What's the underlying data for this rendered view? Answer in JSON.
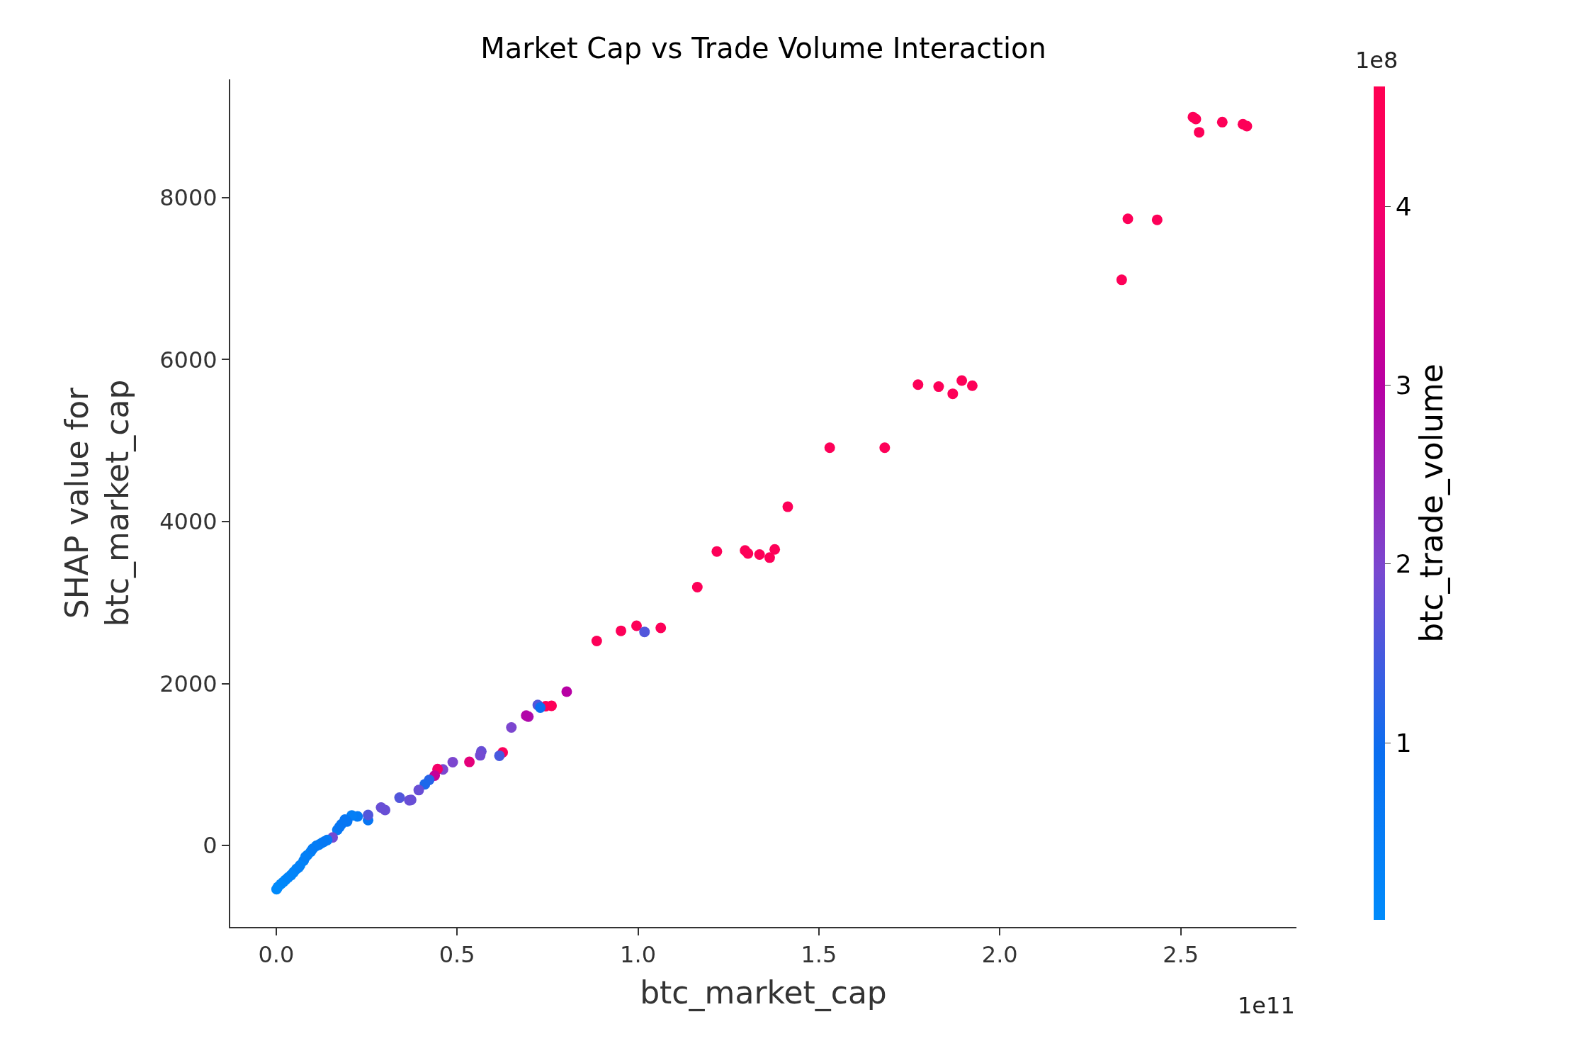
{
  "chart_data": {
    "type": "scatter",
    "title": "Market Cap vs Trade Volume Interaction",
    "xlabel": "btc_market_cap",
    "ylabel": "SHAP value for\nbtc_market_cap",
    "clabel": "btc_trade_volume",
    "annotations": [
      "1e11",
      "1e8"
    ],
    "x": [
      2.534,
      2.542,
      2.551,
      2.615,
      2.672,
      2.683,
      2.354,
      2.435,
      2.337,
      1.774,
      1.831,
      1.87,
      1.895,
      1.924,
      1.53,
      1.682,
      1.414,
      1.218,
      1.296,
      1.304,
      1.336,
      1.364,
      1.378,
      1.164,
      0.886,
      0.953,
      0.996,
      1.018,
      1.063,
      0.803,
      0.761,
      0.745,
      0.723,
      0.73,
      0.697,
      0.691,
      0.65,
      0.626,
      0.617,
      0.567,
      0.564,
      0.534,
      0.488,
      0.461,
      0.446,
      0.438,
      0.423,
      0.411,
      0.394,
      0.373,
      0.368,
      0.341,
      0.301,
      0.29,
      0.254,
      0.254,
      0.225,
      0.209,
      0.196,
      0.18,
      0.169,
      0.156,
      0.141,
      0.126,
      0.111,
      0.096,
      0.086,
      0.076,
      0.066,
      0.056,
      0.041,
      0.026,
      0.013,
      0.001,
      0.005,
      0.02,
      0.033,
      0.048,
      0.062,
      0.081,
      0.101,
      0.118,
      0.133,
      0.175,
      0.19
    ],
    "values": [
      8995,
      8970,
      8807,
      8932,
      8907,
      8882,
      7739,
      7726,
      6985,
      5691,
      5666,
      5578,
      5741,
      5678,
      4912,
      4912,
      4183,
      3631,
      3643,
      3606,
      3593,
      3555,
      3656,
      3191,
      2525,
      2651,
      2714,
      2638,
      2688,
      1900,
      1726,
      1721,
      1735,
      1704,
      1592,
      1605,
      1458,
      1150,
      1109,
      1163,
      1114,
      1033,
      1029,
      940,
      944,
      863,
      810,
      757,
      685,
      564,
      560,
      591,
      439,
      470,
      314,
      377,
      359,
      372,
      296,
      261,
      194,
      100,
      68,
      32,
      -3,
      -74,
      -119,
      -187,
      -244,
      -289,
      -365,
      -423,
      -476,
      -539,
      -510,
      -450,
      -395,
      -330,
      -270,
      -140,
      -40,
      10,
      50,
      230,
      320
    ],
    "cvalues": [
      4.5,
      4.5,
      4.5,
      4.5,
      4.5,
      4.5,
      4.5,
      4.5,
      4.5,
      4.5,
      4.5,
      4.5,
      4.5,
      4.5,
      4.5,
      4.5,
      4.5,
      4.5,
      4.5,
      4.5,
      4.5,
      4.5,
      4.5,
      4.5,
      4.5,
      4.5,
      4.5,
      1.6,
      4.5,
      3.0,
      4.5,
      4.5,
      1.6,
      0.9,
      2.8,
      2.9,
      2.0,
      4.4,
      1.5,
      1.8,
      1.9,
      3.7,
      2.0,
      2.0,
      4.0,
      3.2,
      1.2,
      1.1,
      1.8,
      1.8,
      1.8,
      1.6,
      1.8,
      1.8,
      0.7,
      1.6,
      0.5,
      0.4,
      0.7,
      0.7,
      0.6,
      1.9,
      0.5,
      0.4,
      0.4,
      0.3,
      0.3,
      0.3,
      0.2,
      0.2,
      0.2,
      0.1,
      0.1,
      0.05,
      0.05,
      0.1,
      0.2,
      0.2,
      0.3,
      0.4,
      0.5,
      0.5,
      0.6,
      0.7,
      0.7
    ],
    "xlim": [
      -0.127,
      2.82
    ],
    "xticks": [
      {
        "value": 0,
        "label": "0.0"
      },
      {
        "value": 0.5,
        "label": "0.5"
      },
      {
        "value": 1,
        "label": "1.0"
      },
      {
        "value": 1.5,
        "label": "1.5"
      },
      {
        "value": 2,
        "label": "2.0"
      },
      {
        "value": 2.5,
        "label": "2.5"
      }
    ],
    "ylim": [
      -1005,
      9460
    ],
    "yticks": [
      0,
      2000,
      4000,
      6000,
      8000
    ],
    "clim": [
      0.01,
      4.67
    ],
    "cticks": [
      1,
      2,
      3,
      4
    ],
    "grid": false,
    "marker": "circle"
  }
}
